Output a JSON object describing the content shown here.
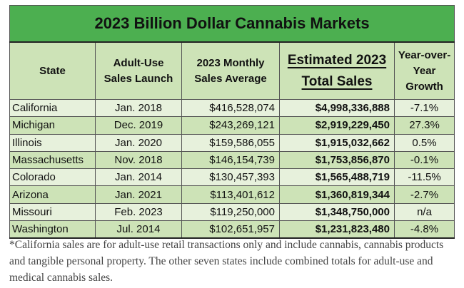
{
  "table": {
    "title": "2023 Billion Dollar Cannabis Markets",
    "headers": {
      "state": "State",
      "launch_line1": "Adult-Use",
      "launch_line2": "Sales Launch",
      "monthly_line1": "2023 Monthly",
      "monthly_line2": "Sales Average",
      "total_line1": "Estimated 2023",
      "total_line2": "Total Sales",
      "growth_line1": "Year-over-",
      "growth_line2": "Year",
      "growth_line3": "Growth"
    },
    "rows": [
      {
        "state": "California",
        "launch": "Jan. 2018",
        "monthly": "$416,528,074",
        "total": "$4,998,336,888",
        "growth": "-7.1%"
      },
      {
        "state": "Michigan",
        "launch": "Dec. 2019",
        "monthly": "$243,269,121",
        "total": "$2,919,229,450",
        "growth": "27.3%"
      },
      {
        "state": "Illinois",
        "launch": "Jan. 2020",
        "monthly": "$159,586,055",
        "total": "$1,915,032,662",
        "growth": "0.5%"
      },
      {
        "state": "Massachusetts",
        "launch": "Nov. 2018",
        "monthly": "$146,154,739",
        "total": "$1,753,856,870",
        "growth": "-0.1%"
      },
      {
        "state": "Colorado",
        "launch": "Jan. 2014",
        "monthly": "$130,457,393",
        "total": "$1,565,488,719",
        "growth": "-11.5%"
      },
      {
        "state": "Arizona",
        "launch": "Jan. 2021",
        "monthly": "$113,401,612",
        "total": "$1,360,819,344",
        "growth": "-2.7%"
      },
      {
        "state": "Missouri",
        "launch": "Feb. 2023",
        "monthly": "$119,250,000",
        "total": "$1,348,750,000",
        "growth": "n/a"
      },
      {
        "state": "Washington",
        "launch": "Jul. 2014",
        "monthly": "$102,651,957",
        "total": "$1,231,823,480",
        "growth": "-4.8%"
      }
    ],
    "colors": {
      "title_bg": "#4caf50",
      "header_bg": "#cde3b7",
      "row_light": "#e7f1dc",
      "row_dark": "#cde3b7"
    }
  },
  "footnote": "*California sales are for adult-use retail transactions only and include cannabis, cannabis products and tangible personal property. The other seven states include combined totals for adult-use and medical cannabis sales."
}
